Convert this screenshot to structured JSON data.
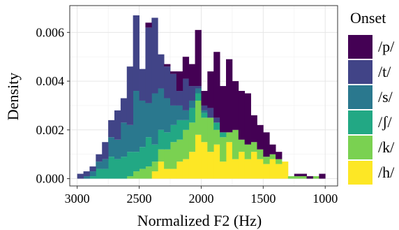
{
  "chart_data": {
    "type": "bar",
    "subtype": "stacked-histogram",
    "xlabel": "Normalized F2 (Hz)",
    "ylabel": "Density",
    "x_reversed": true,
    "xlim": [
      3060,
      900
    ],
    "ylim": [
      -0.0003,
      0.0071
    ],
    "x_ticks": [
      3000,
      2500,
      2000,
      1500,
      1000
    ],
    "x_tick_labels": [
      "3000",
      "2500",
      "2000",
      "1500",
      "1000"
    ],
    "y_ticks": [
      0.0,
      0.002,
      0.004,
      0.006
    ],
    "y_tick_labels": [
      "0.000",
      "0.002",
      "0.004",
      "0.006"
    ],
    "grid": true,
    "legend": {
      "title": "Onset",
      "position": "right"
    },
    "bin_width": 50,
    "bin_starts_hz": [
      2950,
      2900,
      2850,
      2800,
      2750,
      2700,
      2650,
      2600,
      2550,
      2500,
      2450,
      2400,
      2350,
      2300,
      2250,
      2200,
      2150,
      2100,
      2050,
      2000,
      1950,
      1900,
      1850,
      1800,
      1750,
      1700,
      1650,
      1600,
      1550,
      1500,
      1450,
      1400,
      1350,
      1300,
      1250,
      1200,
      1150,
      1100,
      1050,
      1000
    ],
    "series": [
      {
        "name": "/h/",
        "color": "#fde725",
        "values": [
          0,
          0,
          0,
          0,
          0,
          0,
          0,
          0,
          0,
          0,
          0,
          0,
          0.0003,
          0.0007,
          0.0004,
          0.0004,
          0.0007,
          0.0008,
          0.0011,
          0.0018,
          0.0015,
          0.0011,
          0.0014,
          0.0007,
          0.0015,
          0.0008,
          0.0011,
          0.0008,
          0.0011,
          0.0008,
          0.0006,
          0.0008,
          0.0006,
          0.0007,
          0,
          0,
          0,
          0,
          0,
          0
        ]
      },
      {
        "name": "/k/",
        "color": "#7ad151",
        "values": [
          0,
          0,
          0,
          0,
          0,
          0,
          0,
          0,
          0.0001,
          0.0003,
          0.0004,
          0.0005,
          0.0004,
          0.0005,
          0.0008,
          0.0011,
          0.0009,
          0.0012,
          0.0012,
          0.0014,
          0.001,
          0.0014,
          0.0006,
          0.001,
          0.0004,
          0.0012,
          0.0005,
          0.0006,
          0.0004,
          0.0004,
          0.0003,
          0.0002,
          0.0002,
          0,
          0.0001,
          0.0001,
          0.0001,
          0,
          0.0001,
          0
        ]
      },
      {
        "name": "/ʃ/",
        "color": "#22a884",
        "values": [
          0,
          0,
          0.0001,
          0.0004,
          0.0004,
          0.0009,
          0.0008,
          0.0009,
          0.001,
          0.0008,
          0.0009,
          0.0012,
          0.0007,
          0.0008,
          0.0007,
          0.0007,
          0.0008,
          0.0004,
          0.0006,
          0.0003,
          0.0002,
          0,
          0.0003,
          0.0002,
          0,
          0,
          0,
          0,
          0,
          0,
          0,
          0,
          0,
          0,
          0,
          0,
          0,
          0,
          0,
          0
        ]
      },
      {
        "name": "/s/",
        "color": "#2a788e",
        "values": [
          0,
          0.0001,
          0.0002,
          0.0003,
          0.0004,
          0.0008,
          0.0008,
          0.0014,
          0.0011,
          0.0025,
          0.0019,
          0.0014,
          0.0021,
          0.0017,
          0.0014,
          0.0008,
          0.0006,
          0.0004,
          0.0003,
          0.0002,
          0.0001,
          0,
          0,
          0,
          0,
          0,
          0,
          0,
          0,
          0,
          0,
          0,
          0,
          0,
          0,
          0,
          0,
          0,
          0,
          0
        ]
      },
      {
        "name": "/t/",
        "color": "#414487",
        "values": [
          0.0002,
          0.0002,
          0.0002,
          0.0003,
          0.0007,
          0.0007,
          0.0012,
          0.001,
          0.0024,
          0.0031,
          0.0013,
          0.0031,
          0.0031,
          0.0014,
          0.0013,
          0.0013,
          0.0006,
          0.0013,
          0.0006,
          0.0001,
          0.0002,
          0.0004,
          0.0002,
          0,
          0,
          0,
          0,
          0,
          0,
          0,
          0,
          0,
          0,
          0,
          0,
          0,
          0,
          0,
          0,
          0
        ]
      },
      {
        "name": "/p/",
        "color": "#440154",
        "values": [
          0,
          0,
          0,
          0,
          0,
          0,
          0,
          0,
          0,
          0,
          0,
          0.0002,
          0,
          0,
          0.0001,
          0.0001,
          0.0008,
          0.0009,
          0.0009,
          0.0023,
          0.0006,
          0.0015,
          0.0027,
          0.0019,
          0.003,
          0.002,
          0.002,
          0.0021,
          0.0011,
          0.001,
          0.001,
          0.0004,
          0.0003,
          0,
          0,
          0.0001,
          0.0001,
          0.0001,
          0,
          0.0002
        ]
      }
    ],
    "legend_order": [
      "/p/",
      "/t/",
      "/s/",
      "/ʃ/",
      "/k/",
      "/h/"
    ]
  }
}
